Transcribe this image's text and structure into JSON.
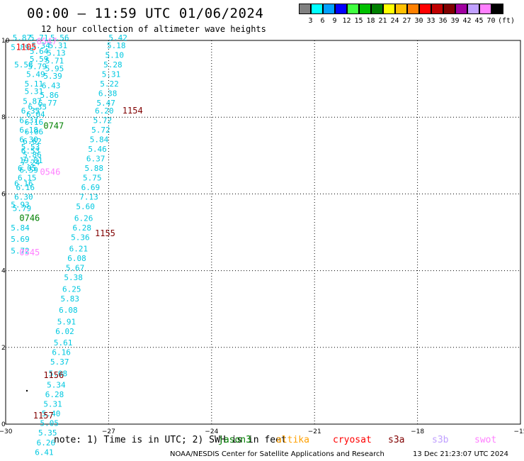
{
  "title": "00:00 – 11:59 UTC 01/06/2024",
  "subtitle": "12 hour collection of altimeter wave heights",
  "legend": {
    "unit": "(ft)",
    "bins": [
      {
        "label": "3",
        "color": "#808080"
      },
      {
        "label": "6",
        "color": "#00ffff"
      },
      {
        "label": "9",
        "color": "#00a0ff"
      },
      {
        "label": "12",
        "color": "#0000ff"
      },
      {
        "label": "15",
        "color": "#40ff40"
      },
      {
        "label": "18",
        "color": "#00c000"
      },
      {
        "label": "21",
        "color": "#008000"
      },
      {
        "label": "24",
        "color": "#ffff00"
      },
      {
        "label": "27",
        "color": "#ffc000"
      },
      {
        "label": "30",
        "color": "#ff8000"
      },
      {
        "label": "33",
        "color": "#ff0000"
      },
      {
        "label": "36",
        "color": "#c00000"
      },
      {
        "label": "39",
        "color": "#800000"
      },
      {
        "label": "42",
        "color": "#a000a0"
      },
      {
        "label": "45",
        "color": "#c0a0ff"
      },
      {
        "label": "70",
        "color": "#ff80ff"
      },
      {
        "label": "",
        "color": "#000000"
      }
    ]
  },
  "axes": {
    "x_ticks": [
      "−30",
      "−27",
      "−24",
      "−21",
      "−18",
      "−15"
    ],
    "y_ticks": [
      "0",
      "2",
      "4",
      "6",
      "8",
      "10"
    ]
  },
  "note": "note: 1) Time is in UTC; 2) SWH is in feet",
  "satellites": [
    {
      "name": "jason3",
      "color": "#008000"
    },
    {
      "name": "altika",
      "color": "#ffa000"
    },
    {
      "name": "cryosat",
      "color": "#ff0000"
    },
    {
      "name": "s3a",
      "color": "#800000"
    },
    {
      "name": "s3b",
      "color": "#c0a0ff"
    },
    {
      "name": "swot",
      "color": "#ff80ff"
    }
  ],
  "credit": "NOAA/NESDIS Center for Satellite Applications and Research",
  "timestamp": "13 Dec 21:23:07 UTC 2024",
  "time_labels": [
    {
      "text": "0547",
      "color": "#ff80ff",
      "lon": -29.1,
      "lat": 9.9
    },
    {
      "text": "1105",
      "color": "#ff0000",
      "lon": -29.7,
      "lat": 9.75
    },
    {
      "text": "1154",
      "color": "#800000",
      "lon": -26.6,
      "lat": 8.1
    },
    {
      "text": "0747",
      "color": "#008000",
      "lon": -28.9,
      "lat": 7.7
    },
    {
      "text": "0546",
      "color": "#ff80ff",
      "lon": -29.0,
      "lat": 6.5
    },
    {
      "text": "0746",
      "color": "#008000",
      "lon": -29.6,
      "lat": 5.3
    },
    {
      "text": "1155",
      "color": "#800000",
      "lon": -27.4,
      "lat": 4.9
    },
    {
      "text": "0545",
      "color": "#ff80ff",
      "lon": -29.6,
      "lat": 4.4
    },
    {
      "text": "1156",
      "color": "#800000",
      "lon": -28.9,
      "lat": 1.2
    },
    {
      "text": "1157",
      "color": "#800000",
      "lon": -29.2,
      "lat": 0.15
    }
  ],
  "tracks": [
    {
      "name": "track-a",
      "color": "#00c8e0",
      "points": [
        {
          "lon": -29.3,
          "lat": 10.0,
          "v": "5.71"
        },
        {
          "lon": -29.25,
          "lat": 9.8,
          "v": "5.34"
        },
        {
          "lon": -29.3,
          "lat": 9.65,
          "v": "5.64"
        },
        {
          "lon": -29.3,
          "lat": 9.45,
          "v": "5.59"
        },
        {
          "lon": -29.35,
          "lat": 9.25,
          "v": "5.79"
        },
        {
          "lon": -29.4,
          "lat": 9.05,
          "v": "5.49"
        },
        {
          "lon": -29.45,
          "lat": 8.8,
          "v": "5.11"
        },
        {
          "lon": -29.45,
          "lat": 8.6,
          "v": "5.31"
        },
        {
          "lon": -29.5,
          "lat": 8.35,
          "v": "5.87"
        },
        {
          "lon": -29.55,
          "lat": 8.1,
          "v": "6.35"
        },
        {
          "lon": -29.6,
          "lat": 7.85,
          "v": "6.37"
        },
        {
          "lon": -29.6,
          "lat": 7.6,
          "v": "6.18"
        },
        {
          "lon": -29.6,
          "lat": 7.35,
          "v": "6.30"
        },
        {
          "lon": -29.55,
          "lat": 7.15,
          "v": "5.53"
        },
        {
          "lon": -29.5,
          "lat": 6.95,
          "v": "5.86"
        },
        {
          "lon": -29.55,
          "lat": 6.75,
          "v": "7.24"
        },
        {
          "lon": -29.6,
          "lat": 6.55,
          "v": "6.59"
        },
        {
          "lon": -29.65,
          "lat": 6.35,
          "v": "6.15"
        },
        {
          "lon": -29.7,
          "lat": 6.1,
          "v": "6.16"
        },
        {
          "lon": -29.75,
          "lat": 5.85,
          "v": "6.30"
        },
        {
          "lon": -29.8,
          "lat": 5.55,
          "v": "5.79"
        }
      ]
    },
    {
      "name": "track-b",
      "color": "#00c8e0",
      "points": [
        {
          "lon": -29.8,
          "lat": 10.0,
          "v": "5.87"
        },
        {
          "lon": -29.85,
          "lat": 9.75,
          "v": "5.89"
        },
        {
          "lon": -29.75,
          "lat": 9.3,
          "v": "5.58"
        },
        {
          "lon": -29.35,
          "lat": 8.2,
          "v": "6.35"
        },
        {
          "lon": -29.4,
          "lat": 8.0,
          "v": "6.04"
        },
        {
          "lon": -29.45,
          "lat": 7.8,
          "v": "6.16"
        },
        {
          "lon": -29.45,
          "lat": 7.55,
          "v": "6.06"
        },
        {
          "lon": -29.5,
          "lat": 7.3,
          "v": "6.62"
        },
        {
          "lon": -29.55,
          "lat": 7.05,
          "v": "6.53"
        },
        {
          "lon": -29.6,
          "lat": 6.8,
          "v": "19.81"
        },
        {
          "lon": -29.65,
          "lat": 6.6,
          "v": "6.05"
        },
        {
          "lon": -29.75,
          "lat": 6.2,
          "v": "6.16"
        },
        {
          "lon": -29.85,
          "lat": 5.65,
          "v": "5.93"
        },
        {
          "lon": -29.85,
          "lat": 5.05,
          "v": "5.84"
        },
        {
          "lon": -29.85,
          "lat": 4.75,
          "v": "5.69"
        },
        {
          "lon": -29.85,
          "lat": 4.45,
          "v": "5.72"
        }
      ]
    },
    {
      "name": "track-c",
      "color": "#00c8e0",
      "points": [
        {
          "lon": -29.05,
          "lat": 8.3,
          "v": "5.77"
        },
        {
          "lon": -29.0,
          "lat": 8.5,
          "v": "5.86"
        },
        {
          "lon": -28.95,
          "lat": 8.75,
          "v": "6.43"
        },
        {
          "lon": -28.9,
          "lat": 9.0,
          "v": "5.39"
        },
        {
          "lon": -28.85,
          "lat": 9.2,
          "v": "5.95"
        },
        {
          "lon": -28.85,
          "lat": 9.4,
          "v": "5.71"
        },
        {
          "lon": -28.8,
          "lat": 9.6,
          "v": "5.13"
        },
        {
          "lon": -28.75,
          "lat": 9.8,
          "v": "5.31"
        },
        {
          "lon": -28.7,
          "lat": 10.0,
          "v": "5.56"
        }
      ]
    },
    {
      "name": "track-d",
      "color": "#00c8e0",
      "points": [
        {
          "lon": -27.0,
          "lat": 10.0,
          "v": "5.42"
        },
        {
          "lon": -27.05,
          "lat": 9.8,
          "v": "5.18"
        },
        {
          "lon": -27.1,
          "lat": 9.55,
          "v": "5.10"
        },
        {
          "lon": -27.15,
          "lat": 9.3,
          "v": "5.28"
        },
        {
          "lon": -27.2,
          "lat": 9.05,
          "v": "5.31"
        },
        {
          "lon": -27.25,
          "lat": 8.8,
          "v": "5.22"
        },
        {
          "lon": -27.3,
          "lat": 8.55,
          "v": "6.38"
        },
        {
          "lon": -27.35,
          "lat": 8.3,
          "v": "5.47"
        },
        {
          "lon": -27.4,
          "lat": 8.1,
          "v": "6.20"
        },
        {
          "lon": -27.45,
          "lat": 7.85,
          "v": "5.72"
        },
        {
          "lon": -27.5,
          "lat": 7.6,
          "v": "5.72"
        },
        {
          "lon": -27.55,
          "lat": 7.35,
          "v": "5.84"
        },
        {
          "lon": -27.6,
          "lat": 7.1,
          "v": "5.46"
        },
        {
          "lon": -27.65,
          "lat": 6.85,
          "v": "6.37"
        },
        {
          "lon": -27.7,
          "lat": 6.6,
          "v": "5.88"
        },
        {
          "lon": -27.75,
          "lat": 6.35,
          "v": "5.75"
        },
        {
          "lon": -27.8,
          "lat": 6.1,
          "v": "6.69"
        },
        {
          "lon": -27.85,
          "lat": 5.85,
          "v": "7.13"
        },
        {
          "lon": -27.95,
          "lat": 5.6,
          "v": "5.60"
        },
        {
          "lon": -28.0,
          "lat": 5.3,
          "v": "6.26"
        },
        {
          "lon": -28.05,
          "lat": 5.05,
          "v": "6.28"
        },
        {
          "lon": -28.1,
          "lat": 4.8,
          "v": "5.36"
        },
        {
          "lon": -28.15,
          "lat": 4.5,
          "v": "6.21"
        },
        {
          "lon": -28.2,
          "lat": 4.25,
          "v": "6.08"
        },
        {
          "lon": -28.25,
          "lat": 4.0,
          "v": "5.67"
        },
        {
          "lon": -28.3,
          "lat": 3.75,
          "v": "5.38"
        },
        {
          "lon": -28.35,
          "lat": 3.45,
          "v": "6.25"
        },
        {
          "lon": -28.4,
          "lat": 3.2,
          "v": "5.83"
        },
        {
          "lon": -28.45,
          "lat": 2.9,
          "v": "6.08"
        },
        {
          "lon": -28.5,
          "lat": 2.6,
          "v": "5.91"
        },
        {
          "lon": -28.55,
          "lat": 2.35,
          "v": "6.02"
        },
        {
          "lon": -28.6,
          "lat": 2.05,
          "v": "5.61"
        },
        {
          "lon": -28.65,
          "lat": 1.8,
          "v": "6.16"
        },
        {
          "lon": -28.7,
          "lat": 1.55,
          "v": "5.37"
        },
        {
          "lon": -28.75,
          "lat": 1.25,
          "v": "5.08"
        },
        {
          "lon": -28.8,
          "lat": 0.95,
          "v": "5.34"
        },
        {
          "lon": -28.85,
          "lat": 0.7,
          "v": "6.28"
        },
        {
          "lon": -28.9,
          "lat": 0.45,
          "v": "5.31"
        },
        {
          "lon": -28.95,
          "lat": 0.2,
          "v": "5.40"
        },
        {
          "lon": -29.0,
          "lat": -0.05,
          "v": "5.05"
        },
        {
          "lon": -29.05,
          "lat": -0.3,
          "v": "5.35"
        },
        {
          "lon": -29.1,
          "lat": -0.55,
          "v": "6.26"
        },
        {
          "lon": -29.15,
          "lat": -0.8,
          "v": "6.41"
        }
      ]
    }
  ]
}
